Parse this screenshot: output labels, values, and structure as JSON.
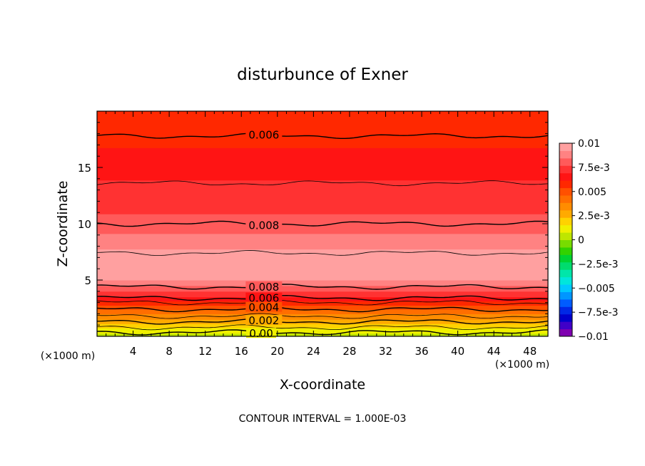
{
  "chart_data": {
    "type": "heatmap",
    "title": "disturbunce of Exner",
    "xlabel": "X-coordinate",
    "ylabel": "Z-coordinate",
    "x_unit": "(×1000 m)",
    "y_unit": "(×1000 m)",
    "xlim": [
      0,
      50
    ],
    "ylim": [
      0,
      20
    ],
    "x_ticks": [
      4,
      8,
      12,
      16,
      20,
      24,
      28,
      32,
      36,
      40,
      44,
      48
    ],
    "y_ticks": [
      5,
      10,
      15
    ],
    "footer": "CONTOUR INTERVAL = 1.000E-03",
    "colorbar": {
      "min": -0.01,
      "max": 0.01,
      "tick_labels": [
        {
          "value": 0.01,
          "label": "0.01"
        },
        {
          "value": 0.0075,
          "label": "7.5e-3"
        },
        {
          "value": 0.005,
          "label": "0.005"
        },
        {
          "value": 0.0025,
          "label": "2.5e-3"
        },
        {
          "value": 0,
          "label": "0"
        },
        {
          "value": -0.0025,
          "label": "−2.5e-3"
        },
        {
          "value": -0.005,
          "label": "−0.005"
        },
        {
          "value": -0.0075,
          "label": "−7.5e-3"
        },
        {
          "value": -0.01,
          "label": "−0.01"
        }
      ],
      "colors": [
        "#7f00b0",
        "#4000c8",
        "#0000cc",
        "#0028e6",
        "#005cff",
        "#0096ff",
        "#00c8ff",
        "#00e6dc",
        "#00e6aa",
        "#00dc6e",
        "#00d232",
        "#32d200",
        "#78dc00",
        "#bee600",
        "#f0f000",
        "#ffd200",
        "#ffaa00",
        "#ff8c00",
        "#ff6e00",
        "#ff5000",
        "#ff2800",
        "#ff1414",
        "#ff3232",
        "#ff5a5a",
        "#ff8282",
        "#ffa0a0"
      ]
    },
    "profile": [
      {
        "z": 0.0,
        "v": 0.0003
      },
      {
        "z": 0.5,
        "v": 0.0012
      },
      {
        "z": 1.0,
        "v": 0.0021
      },
      {
        "z": 1.5,
        "v": 0.003
      },
      {
        "z": 2.0,
        "v": 0.0039
      },
      {
        "z": 2.5,
        "v": 0.0048
      },
      {
        "z": 3.0,
        "v": 0.0058
      },
      {
        "z": 3.5,
        "v": 0.0069
      },
      {
        "z": 4.0,
        "v": 0.0078
      },
      {
        "z": 4.5,
        "v": 0.0085
      },
      {
        "z": 5.0,
        "v": 0.0092
      },
      {
        "z": 5.5,
        "v": 0.0097
      },
      {
        "z": 6.0,
        "v": 0.01
      },
      {
        "z": 6.5,
        "v": 0.01
      },
      {
        "z": 7.0,
        "v": 0.0098
      },
      {
        "z": 7.5,
        "v": 0.0094
      },
      {
        "z": 8.5,
        "v": 0.0088
      },
      {
        "z": 9.5,
        "v": 0.0083
      },
      {
        "z": 10.5,
        "v": 0.0078
      },
      {
        "z": 12.0,
        "v": 0.0074
      },
      {
        "z": 13.6,
        "v": 0.007
      },
      {
        "z": 15.0,
        "v": 0.0066
      },
      {
        "z": 16.5,
        "v": 0.0062
      },
      {
        "z": 17.8,
        "v": 0.006
      },
      {
        "z": 20.0,
        "v": 0.0055
      }
    ],
    "contour_lines": [
      {
        "label": "0.006",
        "z": 17.8,
        "label_x": 18.5
      },
      {
        "label": "",
        "z": 13.6,
        "label_x": null
      },
      {
        "label": "0.008",
        "z": 10.0,
        "label_x": 18.5
      },
      {
        "label": "",
        "z": 7.4,
        "label_x": null
      },
      {
        "label": "0.008",
        "z": 4.4,
        "label_x": 18.5
      },
      {
        "label": "0.006",
        "z": 3.4,
        "label_x": 18.5
      },
      {
        "label": "",
        "z": 3.0,
        "label_x": null
      },
      {
        "label": "0.004",
        "z": 2.4,
        "label_x": 18.5
      },
      {
        "label": "",
        "z": 1.8,
        "label_x": null
      },
      {
        "label": "0.002",
        "z": 1.3,
        "label_x": 18.5
      },
      {
        "label": "",
        "z": 0.8,
        "label_x": null
      },
      {
        "label": "0.00",
        "z": 0.35,
        "label_x": 18.2
      }
    ]
  }
}
